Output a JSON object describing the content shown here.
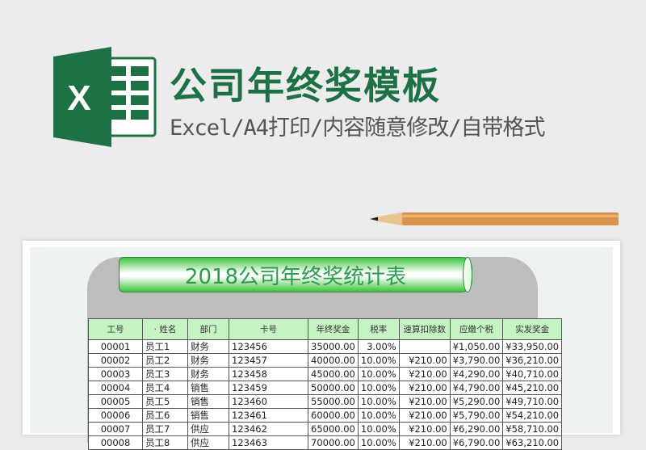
{
  "header": {
    "title": "公司年终奖模板",
    "subtitle": "Excel/A4打印/内容随意修改/自带格式",
    "logo_letter": "X",
    "logo_color": "#1e7145"
  },
  "sheet": {
    "title": "2018公司年终奖统计表",
    "columns": [
      "工号",
      "· 姓名",
      "部门",
      "卡号",
      "年终奖金",
      "税率",
      "速算扣除数",
      "应缴个税",
      "实发奖金"
    ],
    "rows": [
      [
        "00001",
        "员工1",
        "财务",
        "123456",
        "35000.00",
        "3.00%",
        "",
        "¥1,050.00",
        "¥33,950.00"
      ],
      [
        "00002",
        "员工2",
        "财务",
        "123457",
        "40000.00",
        "10.00%",
        "¥210.00",
        "¥3,790.00",
        "¥36,210.00"
      ],
      [
        "00003",
        "员工3",
        "财务",
        "123458",
        "45000.00",
        "10.00%",
        "¥210.00",
        "¥4,290.00",
        "¥40,710.00"
      ],
      [
        "00004",
        "员工4",
        "销售",
        "123459",
        "50000.00",
        "10.00%",
        "¥210.00",
        "¥4,790.00",
        "¥45,210.00"
      ],
      [
        "00005",
        "员工5",
        "销售",
        "123460",
        "55000.00",
        "10.00%",
        "¥210.00",
        "¥5,290.00",
        "¥49,710.00"
      ],
      [
        "00006",
        "员工6",
        "销售",
        "123461",
        "60000.00",
        "10.00%",
        "¥210.00",
        "¥5,790.00",
        "¥54,210.00"
      ],
      [
        "00007",
        "员工7",
        "供应",
        "123462",
        "65000.00",
        "10.00%",
        "¥210.00",
        "¥6,290.00",
        "¥58,710.00"
      ],
      [
        "00008",
        "员工8",
        "供应",
        "123463",
        "70000.00",
        "10.00%",
        "¥210.00",
        "¥6,790.00",
        "¥63,210.00"
      ]
    ],
    "header_color": "#c6f3c4"
  }
}
